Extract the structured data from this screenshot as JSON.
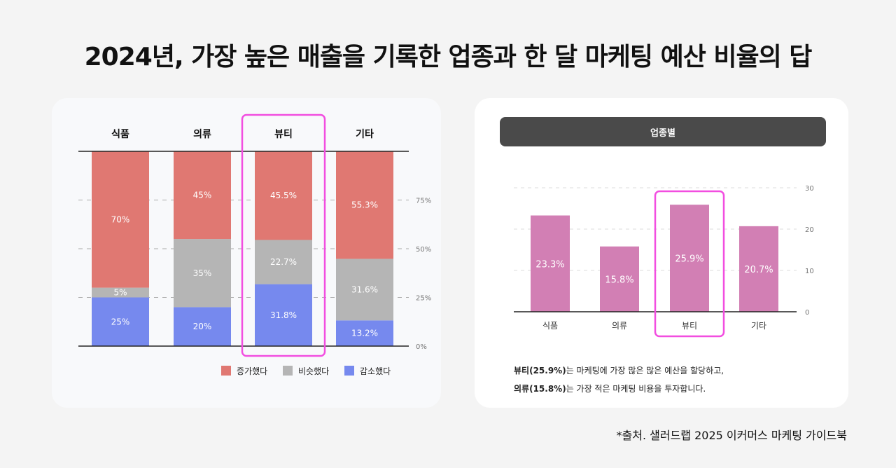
{
  "title": "2024년, 가장 높은 매출을 기록한 업종과 한 달 마케팅 예산 비율의 답",
  "source": "*출처.  샐러드랩 2025 이커머스 마케팅 가이드북",
  "colors": {
    "increase": "#e07872",
    "same": "#b5b5b5",
    "decrease": "#7689ee",
    "budget": "#d27fb4",
    "highlight": "#f24ee0"
  },
  "chart_data": [
    {
      "type": "bar",
      "stacked": true,
      "categories": [
        "식품",
        "의류",
        "뷰티",
        "기타"
      ],
      "series": [
        {
          "name": "감소했다",
          "values": [
            25,
            20,
            31.8,
            13.2
          ],
          "labels": [
            "25%",
            "20%",
            "31.8%",
            "13.2%"
          ]
        },
        {
          "name": "비슷했다",
          "values": [
            5,
            35,
            22.7,
            31.6
          ],
          "labels": [
            "5%",
            "35%",
            "22.7%",
            "31.6%"
          ]
        },
        {
          "name": "증가했다",
          "values": [
            70,
            45,
            45.5,
            55.3
          ],
          "labels": [
            "70%",
            "45%",
            "45.5%",
            "55.3%"
          ]
        }
      ],
      "ylim": [
        0,
        100
      ],
      "yticks": [
        "0%",
        "25%",
        "50%",
        "75%"
      ],
      "highlight": "뷰티",
      "legend": [
        "증가했다",
        "비슷했다",
        "감소했다"
      ]
    },
    {
      "type": "bar",
      "header": "업종별",
      "categories": [
        "식품",
        "의류",
        "뷰티",
        "기타"
      ],
      "values": [
        23.3,
        15.8,
        25.9,
        20.7
      ],
      "labels": [
        "23.3%",
        "15.8%",
        "25.9%",
        "20.7%"
      ],
      "ylim": [
        0,
        30
      ],
      "yticks": [
        "0",
        "10",
        "20",
        "30"
      ],
      "highlight": "뷰티"
    }
  ],
  "note": {
    "line1_bold": "뷰티(25.9%)",
    "line1_rest": "는 마케팅에 가장 많은 많은 예산을 할당하고,",
    "line2_bold": "의류(15.8%)",
    "line2_rest": "는 가장 적은 마케팅 비용을 투자합니다."
  }
}
